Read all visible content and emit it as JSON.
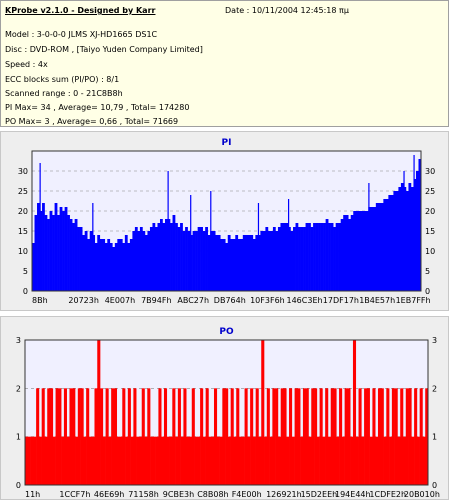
{
  "info": {
    "title": "KProbe v2.1.0 - Designed by Karr",
    "date": "Date : 10/11/2004 12:45:18 πμ",
    "model": "Model : 3-0-0-0 JLMS    XJ-HD1665        DS1C",
    "disc": "Disc : DVD-ROM ,  [Taiyo Yuden Company Limited]",
    "speed": "Speed : 4x",
    "ecc": "ECC blocks sum (PI/PO) : 8/1",
    "range": "Scanned range : 0 - 21C8B8h",
    "pi_stats": "PI Max= 34 , Average= 10,79 , Total= 174280",
    "po_stats": "PO Max= 3 , Average= 0,66 , Total= 71669"
  },
  "chart_data": [
    {
      "type": "bar",
      "title": "PI",
      "color": "#0000ff",
      "background": "#f0f0ff",
      "ylim": [
        0,
        35
      ],
      "yticks": [
        0,
        5,
        10,
        15,
        20,
        25,
        30
      ],
      "xticks": [
        "8Bh",
        "20723h",
        "4E007h",
        "7B94Fh",
        "ABC27h",
        "DB764h",
        "10F3F6h",
        "146C3Eh",
        "17DF17h",
        "1B4E57h",
        "1EB7FFh"
      ],
      "grid": true,
      "values": [
        12,
        19,
        22,
        20,
        22,
        19,
        18,
        20,
        19,
        22,
        19,
        21,
        20,
        21,
        19,
        18,
        17,
        18,
        16,
        16,
        14,
        15,
        13,
        15,
        14,
        12,
        14,
        13,
        13,
        12,
        13,
        12,
        11,
        12,
        13,
        13,
        12,
        14,
        12,
        13,
        15,
        16,
        15,
        16,
        15,
        14,
        15,
        16,
        17,
        16,
        17,
        18,
        17,
        18,
        18,
        17,
        19,
        17,
        16,
        17,
        15,
        16,
        15,
        14,
        15,
        15,
        16,
        16,
        15,
        16,
        14,
        15,
        15,
        14,
        14,
        13,
        13,
        12,
        14,
        13,
        13,
        14,
        13,
        13,
        14,
        14,
        14,
        14,
        13,
        14,
        14,
        15,
        15,
        16,
        15,
        15,
        16,
        15,
        16,
        17,
        17,
        17,
        16,
        15,
        16,
        17,
        16,
        16,
        16,
        17,
        17,
        16,
        17,
        17,
        17,
        17,
        17,
        18,
        17,
        17,
        16,
        17,
        17,
        18,
        19,
        19,
        18,
        19,
        20,
        20,
        20,
        20,
        20,
        20,
        21,
        21,
        21,
        22,
        22,
        22,
        23,
        23,
        24,
        24,
        25,
        25,
        26,
        27,
        26,
        25,
        27,
        26,
        28,
        30,
        33
      ],
      "spikes": [
        [
          3,
          32
        ],
        [
          24,
          22
        ],
        [
          54,
          30
        ],
        [
          63,
          24
        ],
        [
          71,
          25
        ],
        [
          90,
          22
        ],
        [
          102,
          23
        ],
        [
          134,
          27
        ],
        [
          148,
          30
        ],
        [
          152,
          34
        ]
      ]
    },
    {
      "type": "bar",
      "title": "PO",
      "color": "#ff0000",
      "background": "#f0f0ff",
      "ylim": [
        0,
        3
      ],
      "yticks": [
        0,
        1,
        2,
        3
      ],
      "xticks": [
        "11h",
        "1CCF7h",
        "46E69h",
        "71158h",
        "9CBE3h",
        "C8B08h",
        "F4E00h",
        "126921h",
        "15D2EEh",
        "194E44h",
        "1CDFE2h",
        "20B010h"
      ],
      "grid": true,
      "values": [
        1,
        1,
        1,
        1,
        2,
        1,
        2,
        1,
        2,
        2,
        1,
        2,
        2,
        1,
        2,
        1,
        2,
        2,
        1,
        2,
        2,
        1,
        2,
        1,
        1,
        2,
        3,
        2,
        1,
        2,
        1,
        2,
        2,
        1,
        1,
        2,
        1,
        2,
        1,
        2,
        1,
        1,
        2,
        1,
        2,
        1,
        1,
        1,
        2,
        1,
        2,
        1,
        1,
        2,
        1,
        2,
        1,
        2,
        1,
        1,
        2,
        1,
        1,
        2,
        1,
        2,
        1,
        1,
        2,
        1,
        1,
        2,
        2,
        1,
        2,
        1,
        2,
        1,
        1,
        2,
        1,
        2,
        1,
        2,
        1,
        3,
        1,
        2,
        1,
        2,
        2,
        1,
        2,
        2,
        1,
        2,
        1,
        2,
        2,
        1,
        2,
        2,
        1,
        2,
        2,
        1,
        2,
        1,
        2,
        1,
        2,
        2,
        1,
        2,
        1,
        2,
        2,
        1,
        3,
        1,
        2,
        1,
        2,
        2,
        1,
        2,
        1,
        2,
        2,
        1,
        2,
        1,
        2,
        2,
        1,
        2,
        1,
        2,
        2,
        1,
        2,
        1,
        2,
        1,
        2
      ]
    }
  ]
}
